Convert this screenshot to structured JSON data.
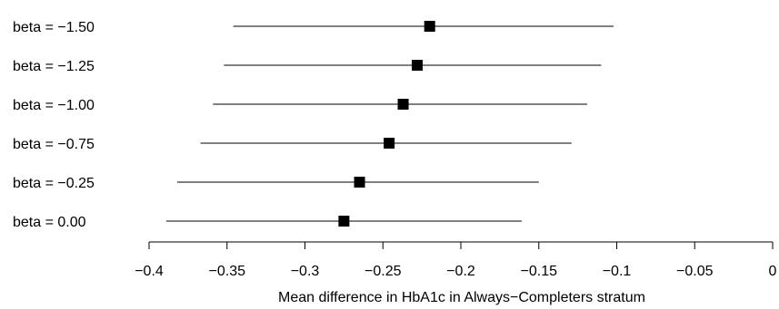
{
  "chart_data": {
    "type": "forest",
    "title": "",
    "xlabel": "Mean difference in HbA1c in Always−Completers stratum",
    "ylabel": "",
    "xlim": [
      -0.4,
      0
    ],
    "xticks": [
      -0.4,
      -0.35,
      -0.3,
      -0.25,
      -0.2,
      -0.15,
      -0.1,
      -0.05,
      0
    ],
    "xtick_labels": [
      "−0.4",
      "−0.35",
      "−0.3",
      "−0.25",
      "−0.2",
      "−0.15",
      "−0.1",
      "−0.05",
      "0"
    ],
    "grid": false,
    "rows": [
      {
        "label": "beta = −1.50",
        "estimate": -0.22,
        "lower": -0.346,
        "upper": -0.102
      },
      {
        "label": "beta = −1.25",
        "estimate": -0.228,
        "lower": -0.352,
        "upper": -0.11
      },
      {
        "label": "beta = −1.00",
        "estimate": -0.237,
        "lower": -0.359,
        "upper": -0.119
      },
      {
        "label": "beta = −0.75",
        "estimate": -0.246,
        "lower": -0.367,
        "upper": -0.129
      },
      {
        "label": "beta = −0.25",
        "estimate": -0.265,
        "lower": -0.382,
        "upper": -0.15
      },
      {
        "label": "beta = 0.00",
        "estimate": -0.275,
        "lower": -0.389,
        "upper": -0.161
      }
    ],
    "colors": {
      "marks": "#000000"
    }
  }
}
